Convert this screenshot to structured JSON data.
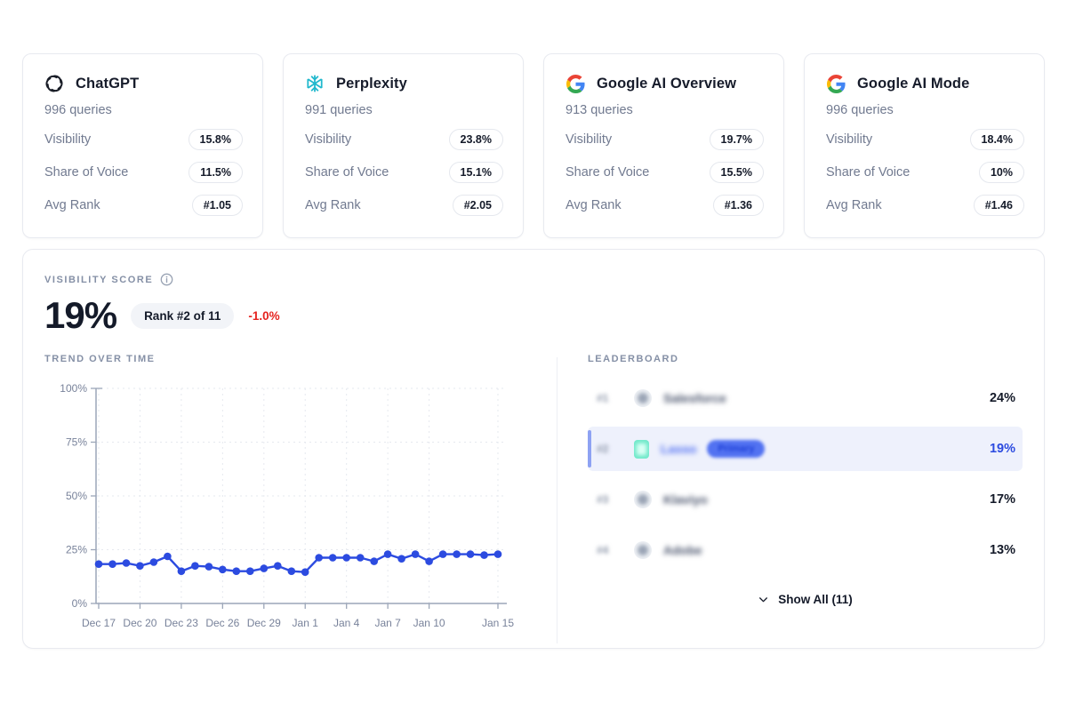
{
  "platform_cards": [
    {
      "name": "ChatGPT",
      "icon": "openai-logo-icon",
      "queries": "996 queries",
      "metrics": [
        {
          "label": "Visibility",
          "value": "15.8%"
        },
        {
          "label": "Share of Voice",
          "value": "11.5%"
        },
        {
          "label": "Avg Rank",
          "value": "#1.05"
        }
      ]
    },
    {
      "name": "Perplexity",
      "icon": "perplexity-logo-icon",
      "queries": "991 queries",
      "metrics": [
        {
          "label": "Visibility",
          "value": "23.8%"
        },
        {
          "label": "Share of Voice",
          "value": "15.1%"
        },
        {
          "label": "Avg Rank",
          "value": "#2.05"
        }
      ]
    },
    {
      "name": "Google AI Overview",
      "icon": "google-logo-icon",
      "queries": "913 queries",
      "metrics": [
        {
          "label": "Visibility",
          "value": "19.7%"
        },
        {
          "label": "Share of Voice",
          "value": "15.5%"
        },
        {
          "label": "Avg Rank",
          "value": "#1.36"
        }
      ]
    },
    {
      "name": "Google AI Mode",
      "icon": "google-logo-icon",
      "queries": "996 queries",
      "metrics": [
        {
          "label": "Visibility",
          "value": "18.4%"
        },
        {
          "label": "Share of Voice",
          "value": "10%"
        },
        {
          "label": "Avg Rank",
          "value": "#1.46"
        }
      ]
    }
  ],
  "visibility_panel": {
    "title": "VISIBILITY SCORE",
    "score": "19%",
    "rank_badge": "Rank #2 of 11",
    "delta": "-1.0%",
    "trend_label": "TREND OVER TIME",
    "leaderboard_label": "LEADERBOARD",
    "show_all_label": "Show All (11)",
    "leaderboard": [
      {
        "rank": "#1",
        "name": "Salesforce",
        "value": "24%",
        "highlighted": false,
        "blurred": true
      },
      {
        "rank": "#2",
        "name": "Lasso",
        "badge": "Primary",
        "value": "19%",
        "highlighted": true,
        "blurred": true
      },
      {
        "rank": "#3",
        "name": "Klaviyo",
        "value": "17%",
        "highlighted": false,
        "blurred": true
      },
      {
        "rank": "#4",
        "name": "Adobe",
        "value": "13%",
        "highlighted": false,
        "blurred": true
      }
    ]
  },
  "chart_data": {
    "type": "line",
    "title": "Trend Over Time",
    "xlabel": "",
    "ylabel": "",
    "ylim": [
      0,
      100
    ],
    "y_ticks": [
      0,
      25,
      50,
      75,
      100
    ],
    "y_tick_labels": [
      "0%",
      "25%",
      "50%",
      "75%",
      "100%"
    ],
    "grid": true,
    "x": [
      "Dec 17",
      "Dec 18",
      "Dec 19",
      "Dec 20",
      "Dec 21",
      "Dec 22",
      "Dec 23",
      "Dec 24",
      "Dec 25",
      "Dec 26",
      "Dec 27",
      "Dec 28",
      "Dec 29",
      "Dec 30",
      "Dec 31",
      "Jan 1",
      "Jan 2",
      "Jan 3",
      "Jan 4",
      "Jan 5",
      "Jan 6",
      "Jan 7",
      "Jan 8",
      "Jan 9",
      "Jan 10",
      "Jan 11",
      "Jan 12",
      "Jan 13",
      "Jan 14",
      "Jan 15"
    ],
    "values": [
      18.3,
      18.3,
      18.8,
      17.5,
      19.2,
      21.9,
      15.0,
      17.5,
      17.1,
      15.8,
      15.0,
      15.0,
      16.3,
      17.5,
      15.0,
      14.6,
      21.3,
      21.3,
      21.3,
      21.3,
      19.6,
      22.9,
      20.8,
      22.9,
      19.6,
      22.9,
      22.9,
      22.9,
      22.5,
      22.9
    ],
    "tick_indices": [
      0,
      3,
      6,
      9,
      12,
      15,
      18,
      21,
      24,
      29
    ],
    "tick_labels": [
      "Dec 17",
      "Dec 20",
      "Dec 23",
      "Dec 26",
      "Dec 29",
      "Jan 1",
      "Jan 4",
      "Jan 7",
      "Jan 10",
      "Jan 15"
    ],
    "line_color": "#2c4be0"
  },
  "colors": {
    "accent_blue": "#2c4be0",
    "delta_red": "#e5231f",
    "highlight_row_bg": "#eef1fc",
    "perplexity_teal": "#20b8cd",
    "mint_avatar": "#72e9cb",
    "muted_text": "#717a90"
  }
}
